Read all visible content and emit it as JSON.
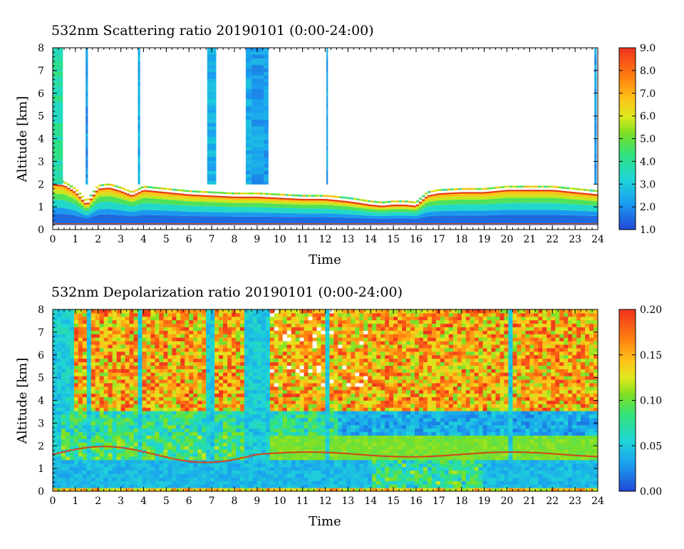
{
  "chart_data": [
    {
      "type": "heatmap",
      "title": "532nm Scattering ratio  20190101 (0:00-24:00)",
      "xlabel": "Time",
      "ylabel": "Altitude [km]",
      "xlim": [
        0,
        24
      ],
      "ylim": [
        0,
        8
      ],
      "x_ticks": [
        "0",
        "1",
        "2",
        "3",
        "4",
        "5",
        "6",
        "7",
        "8",
        "9",
        "10",
        "11",
        "12",
        "13",
        "14",
        "15",
        "16",
        "17",
        "18",
        "19",
        "20",
        "21",
        "22",
        "23",
        "24"
      ],
      "y_ticks": [
        "0",
        "1",
        "2",
        "3",
        "4",
        "5",
        "6",
        "7",
        "8"
      ],
      "colorbar": {
        "min": 1.0,
        "max": 9.0,
        "ticks": [
          "1.0",
          "2.0",
          "3.0",
          "4.0",
          "5.0",
          "6.0",
          "7.0",
          "8.0",
          "9.0"
        ]
      },
      "cloud_base_km": [
        [
          0,
          2.1
        ],
        [
          0.5,
          2.05
        ],
        [
          1,
          1.75
        ],
        [
          1.5,
          1.2
        ],
        [
          2,
          1.9
        ],
        [
          2.5,
          1.95
        ],
        [
          3,
          1.8
        ],
        [
          3.5,
          1.6
        ],
        [
          4,
          1.85
        ],
        [
          5,
          1.75
        ],
        [
          6,
          1.65
        ],
        [
          7,
          1.6
        ],
        [
          8,
          1.55
        ],
        [
          9,
          1.55
        ],
        [
          10,
          1.5
        ],
        [
          11,
          1.45
        ],
        [
          12,
          1.45
        ],
        [
          13,
          1.35
        ],
        [
          14,
          1.2
        ],
        [
          14.5,
          1.15
        ],
        [
          15,
          1.2
        ],
        [
          15.5,
          1.2
        ],
        [
          16,
          1.15
        ],
        [
          16.5,
          1.6
        ],
        [
          17,
          1.7
        ],
        [
          18,
          1.75
        ],
        [
          19,
          1.75
        ],
        [
          20,
          1.85
        ],
        [
          21,
          1.85
        ],
        [
          22,
          1.85
        ],
        [
          23,
          1.75
        ],
        [
          24,
          1.65
        ]
      ],
      "column_events_h": [
        0,
        1.5,
        3.8,
        6.9,
        8.6,
        9.2,
        12.1,
        23.9
      ],
      "grid": false
    },
    {
      "type": "heatmap",
      "title": "532nm Depolarization ratio  20190101 (0:00-24:00)",
      "xlabel": "Time",
      "ylabel": "Altitude [km]",
      "xlim": [
        0,
        24
      ],
      "ylim": [
        0,
        8
      ],
      "x_ticks": [
        "0",
        "1",
        "2",
        "3",
        "4",
        "5",
        "6",
        "7",
        "8",
        "9",
        "10",
        "11",
        "12",
        "13",
        "14",
        "15",
        "16",
        "17",
        "18",
        "19",
        "20",
        "21",
        "22",
        "23",
        "24"
      ],
      "y_ticks": [
        "0",
        "1",
        "2",
        "3",
        "4",
        "5",
        "6",
        "7",
        "8"
      ],
      "colorbar": {
        "min": 0.0,
        "max": 0.2,
        "ticks": [
          "0.00",
          "0.05",
          "0.10",
          "0.15",
          "0.20"
        ]
      },
      "grid": false
    }
  ]
}
